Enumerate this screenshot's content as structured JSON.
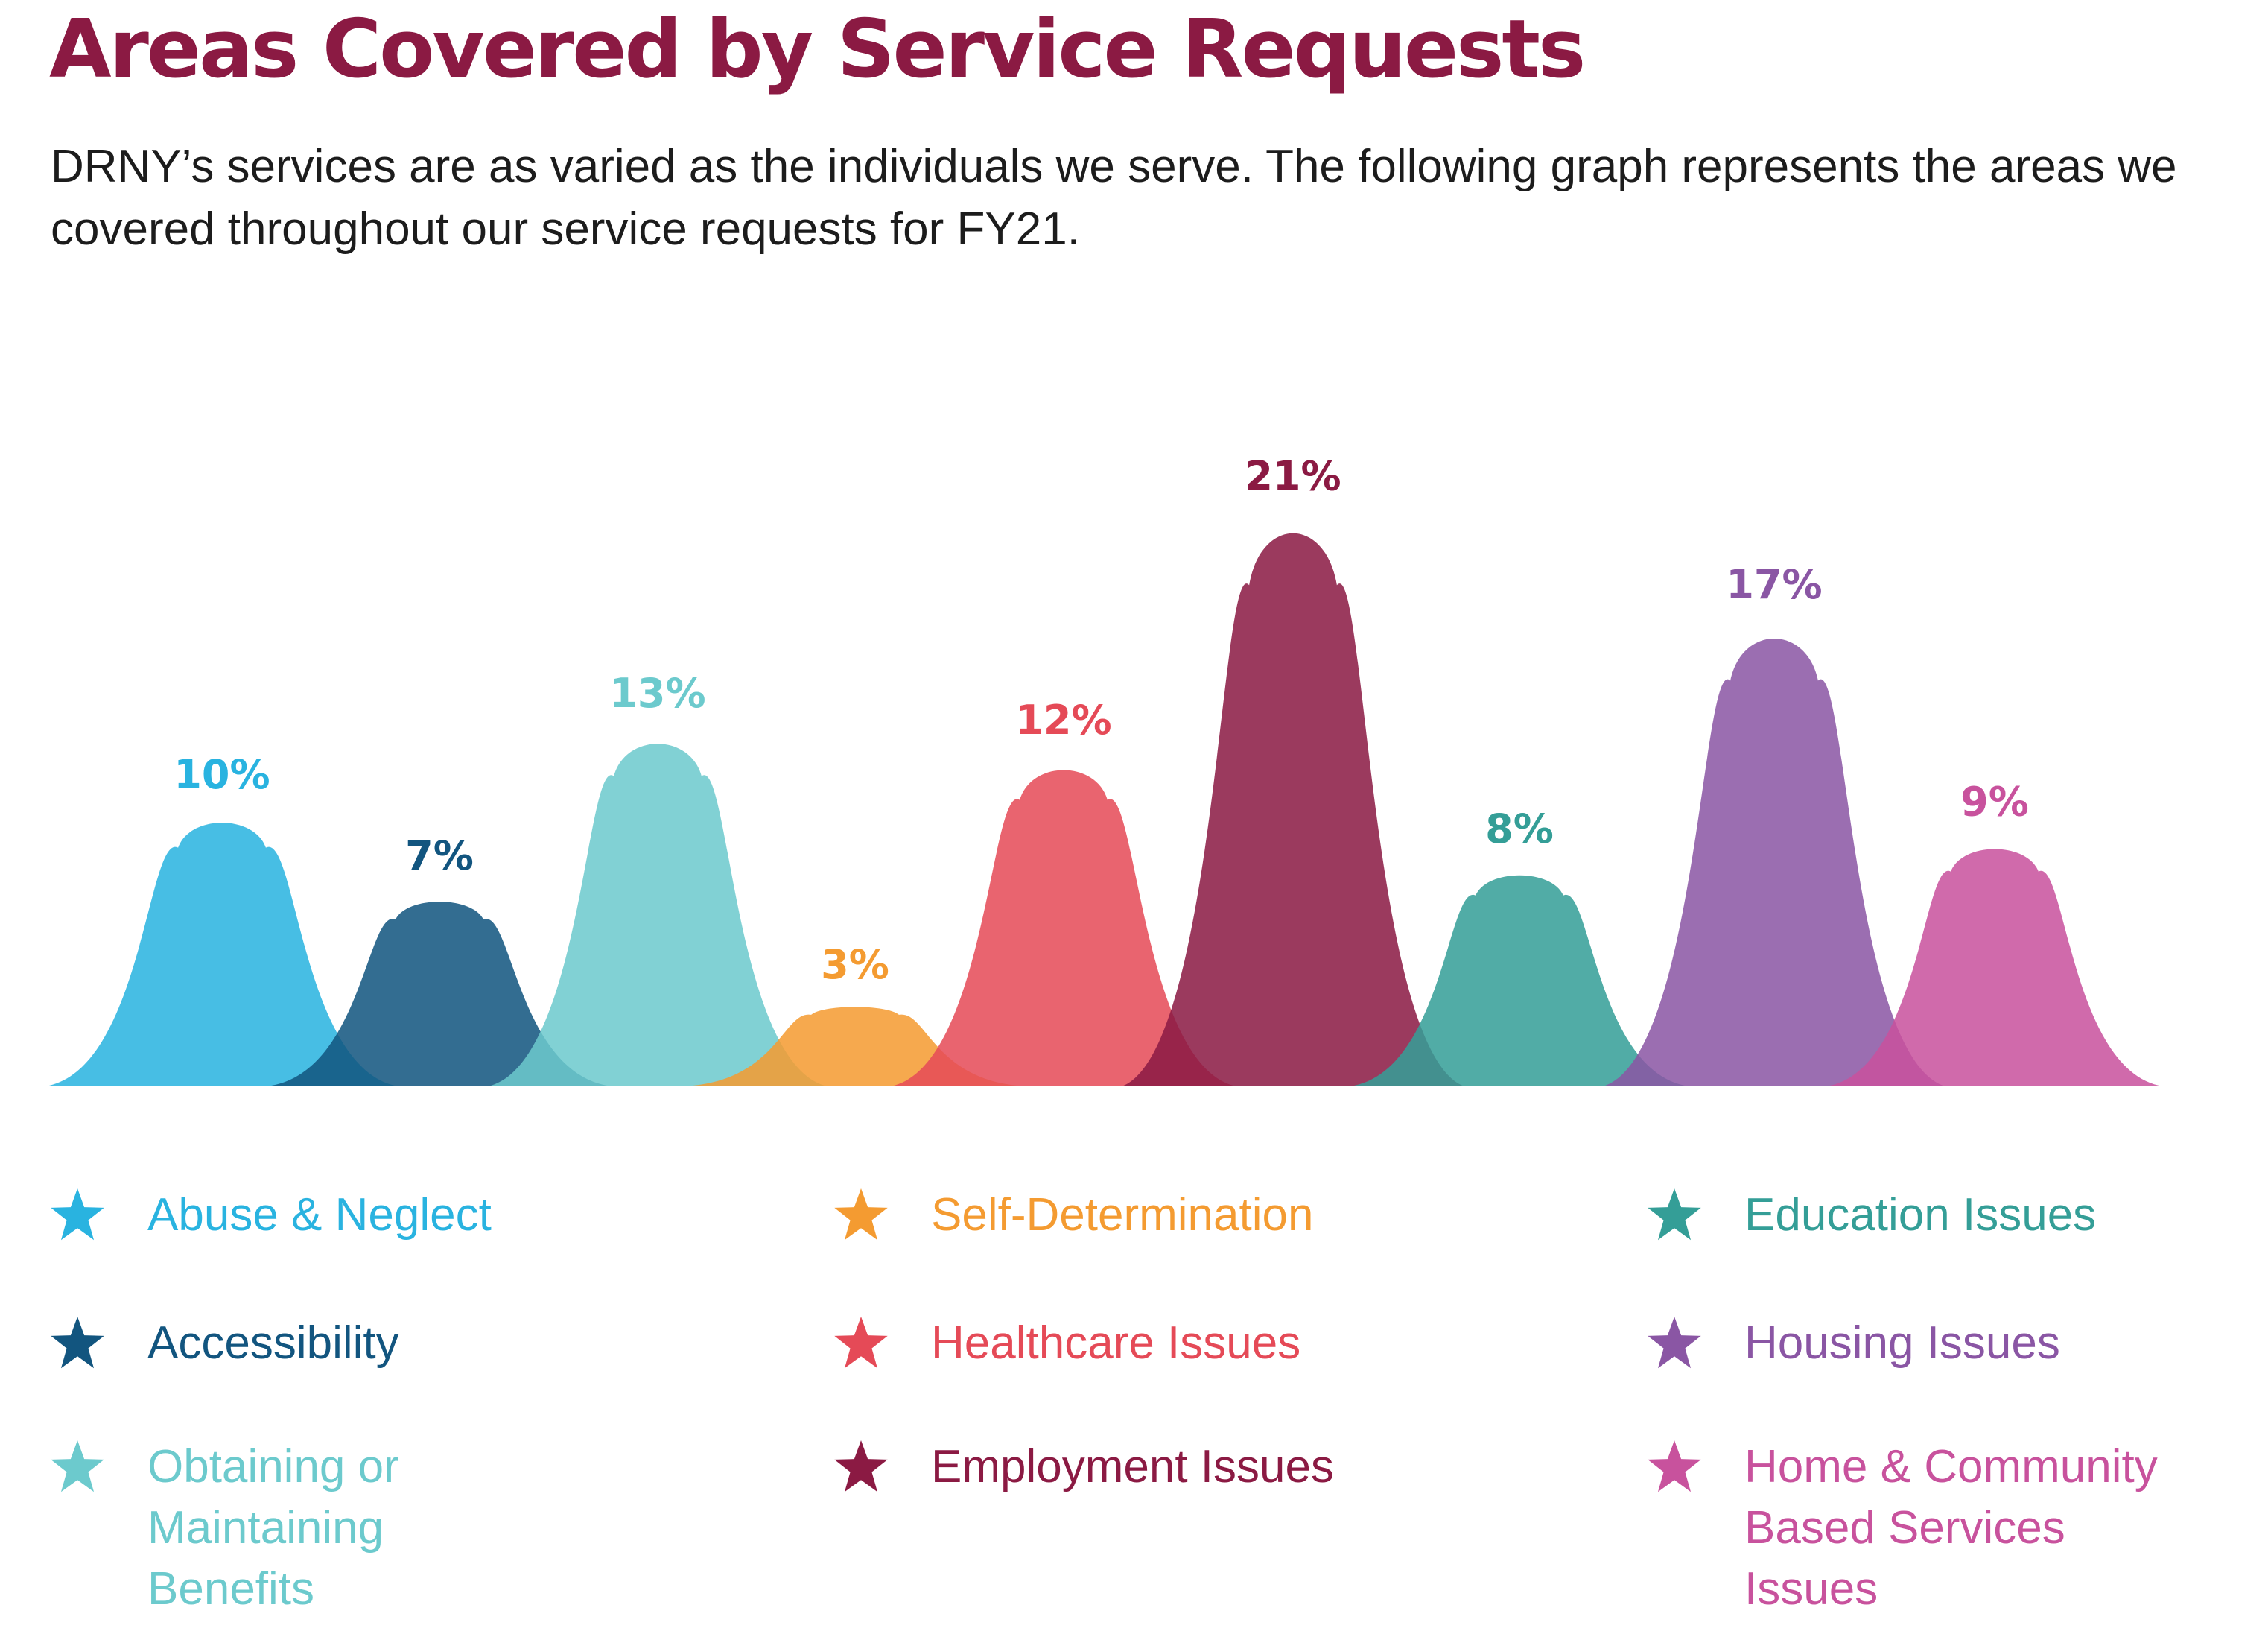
{
  "header": {
    "title": "Areas Covered by Service Requests",
    "subtitle": "DRNY’s services are as varied as the individuals we serve. The following graph represents the areas we covered throughout our service requests for FY21."
  },
  "chart_data": {
    "type": "area",
    "unit": "%",
    "ylim": [
      0,
      21
    ],
    "grid": false,
    "categories": [
      "Abuse & Neglect",
      "Accessibility",
      "Obtaining or Maintaining Benefits",
      "Self-Determination",
      "Healthcare Issues",
      "Employment Issues",
      "Education Issues",
      "Housing Issues",
      "Home & Community Based Services Issues"
    ],
    "values": [
      10,
      7,
      13,
      3,
      12,
      21,
      8,
      17,
      9
    ],
    "labels": [
      "10%",
      "7%",
      "13%",
      "3%",
      "12%",
      "21%",
      "8%",
      "17%",
      "9%"
    ],
    "colors": [
      "#29b3e0",
      "#12557f",
      "#6ccacd",
      "#f49b31",
      "#e54a57",
      "#8b1a43",
      "#349e97",
      "#8a56a4",
      "#c8529d"
    ],
    "legend_position": "bottom"
  },
  "legend": {
    "items": [
      {
        "label": "Abuse & Neglect",
        "color": "#29b3e0",
        "icon": "star-icon"
      },
      {
        "label": "Accessibility",
        "color": "#12557f",
        "icon": "star-icon"
      },
      {
        "label": "Obtaining or\nMaintaining\nBenefits",
        "color": "#6ccacd",
        "icon": "star-icon"
      },
      {
        "label": "Self-Determination",
        "color": "#f49b31",
        "icon": "star-icon"
      },
      {
        "label": "Healthcare Issues",
        "color": "#e54a57",
        "icon": "star-icon"
      },
      {
        "label": "Employment Issues",
        "color": "#8b1a43",
        "icon": "star-icon"
      },
      {
        "label": "Education Issues",
        "color": "#349e97",
        "icon": "star-icon"
      },
      {
        "label": "Housing Issues",
        "color": "#8a56a4",
        "icon": "star-icon"
      },
      {
        "label": "Home & Community\nBased Services\nIssues",
        "color": "#c8529d",
        "icon": "star-icon"
      }
    ]
  }
}
